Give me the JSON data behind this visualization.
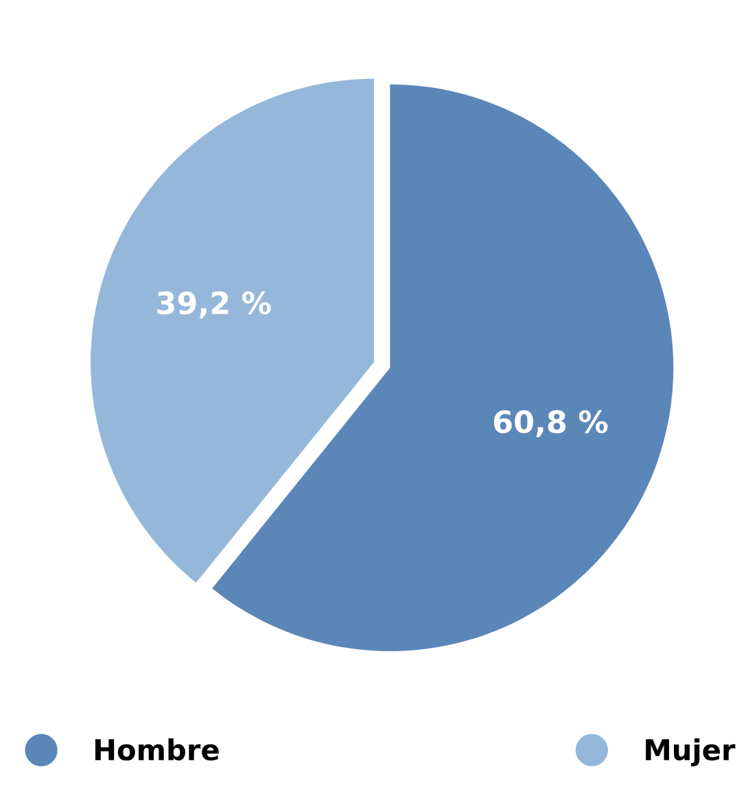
{
  "chart_data": {
    "type": "pie",
    "categories": [
      "Hombre",
      "Mujer"
    ],
    "values": [
      60.8,
      39.2
    ],
    "colors": [
      "#5b86b8",
      "#95b8da"
    ],
    "value_labels": [
      "60,8 %",
      "39,2 %"
    ],
    "legend": "bottom"
  }
}
